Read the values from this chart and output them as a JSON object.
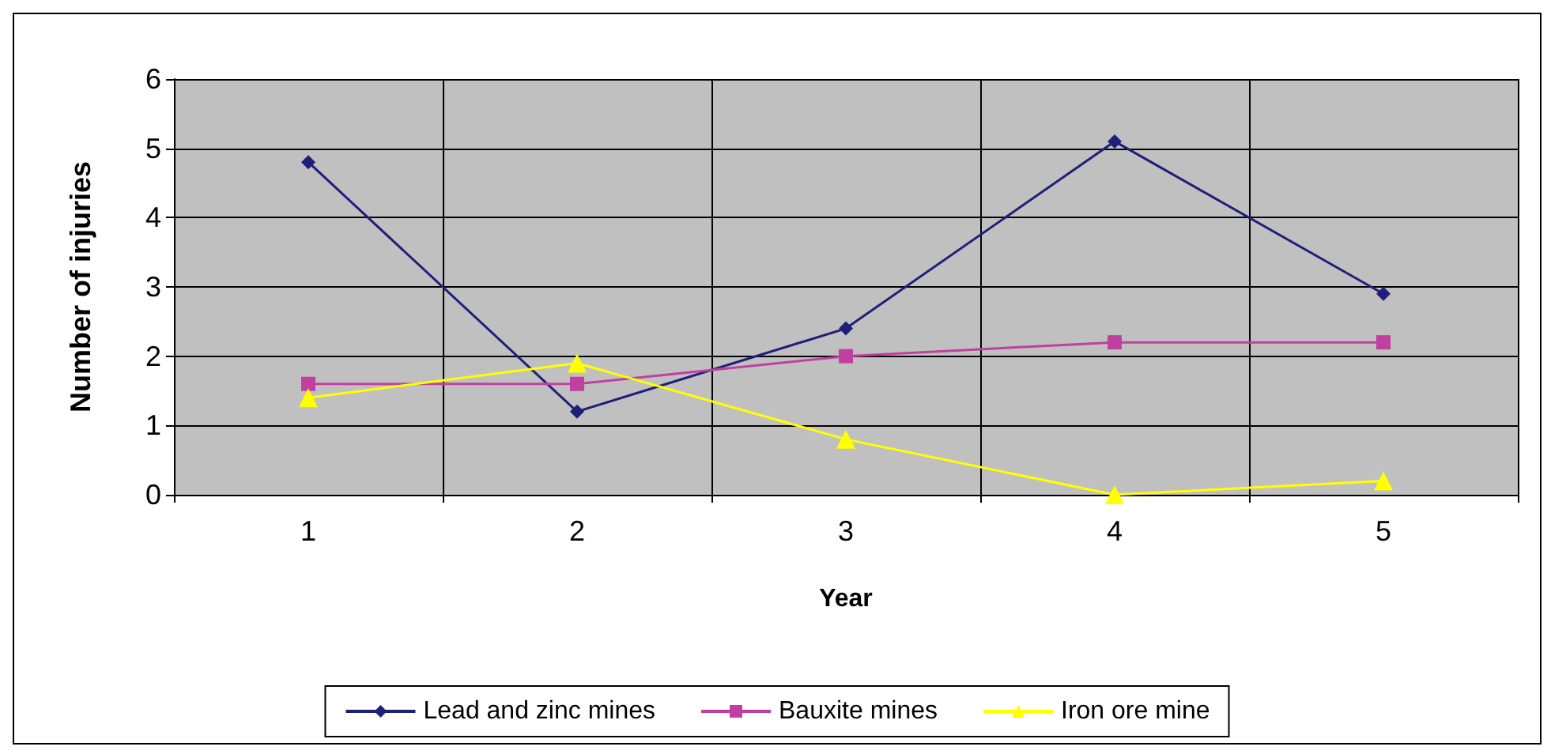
{
  "chart_data": {
    "type": "line",
    "xlabel": "Year",
    "ylabel": "Number of injuries",
    "categories": [
      "1",
      "2",
      "3",
      "4",
      "5"
    ],
    "ylim": [
      0,
      6
    ],
    "yticks": [
      0,
      1,
      2,
      3,
      4,
      5,
      6
    ],
    "grid": true,
    "legend": "bottom",
    "series": [
      {
        "name": "Lead and zinc mines",
        "color": "#1f1f7a",
        "marker": "diamond",
        "values": [
          4.8,
          1.2,
          2.4,
          5.1,
          2.9
        ]
      },
      {
        "name": "Bauxite mines",
        "color": "#c040a0",
        "marker": "square",
        "values": [
          1.6,
          1.6,
          2.0,
          2.2,
          2.2
        ]
      },
      {
        "name": "Iron ore mine",
        "color": "#ffff00",
        "marker": "triangle",
        "values": [
          1.4,
          1.9,
          0.8,
          0.0,
          0.2
        ]
      }
    ]
  }
}
